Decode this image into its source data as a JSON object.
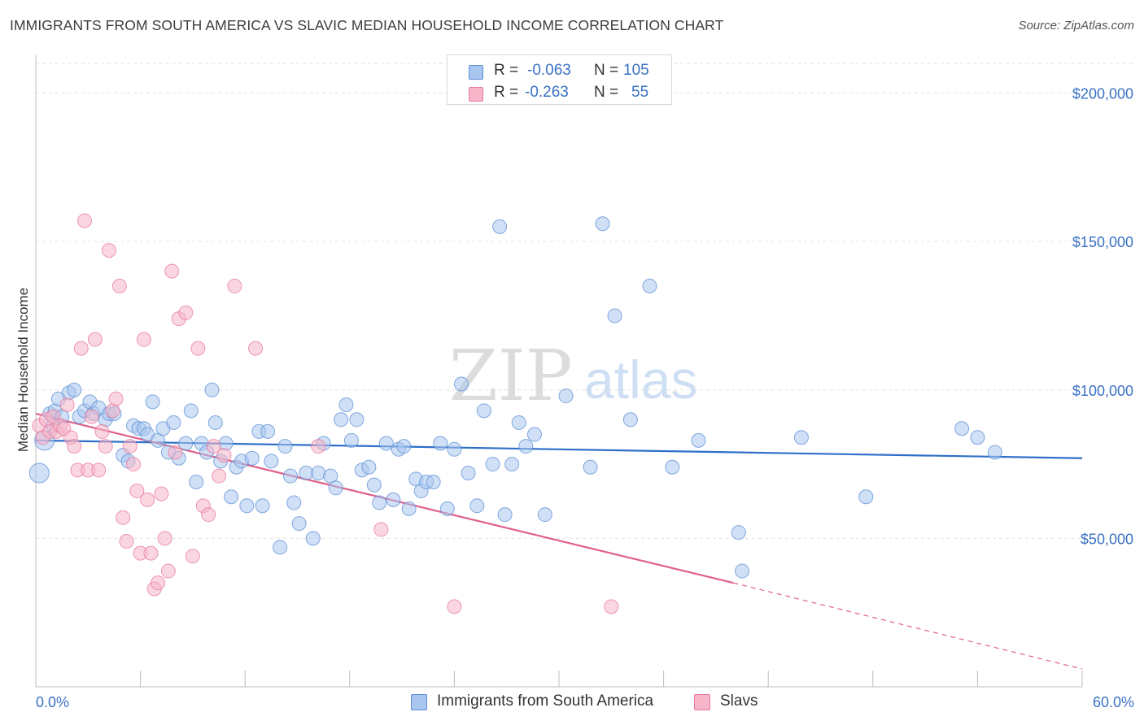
{
  "title": "IMMIGRANTS FROM SOUTH AMERICA VS SLAVIC MEDIAN HOUSEHOLD INCOME CORRELATION CHART",
  "source": "Source: ZipAtlas.com",
  "watermark": {
    "zip": "ZIP",
    "atlas": "atlas"
  },
  "legend_top": [
    {
      "r_label": "R =",
      "r_value": "-0.063",
      "n_label": "N =",
      "n_value": "105",
      "color": "#a9c6ee"
    },
    {
      "r_label": "R =",
      "r_value": "-0.263",
      "n_label": "N =",
      "n_value": "55",
      "color": "#f6b5c8"
    }
  ],
  "legend_bottom": [
    {
      "label": "Immigrants from South America",
      "color": "#a9c6ee"
    },
    {
      "label": "Slavs",
      "color": "#f6b5c8"
    }
  ],
  "chart_data": {
    "type": "scatter",
    "title": "IMMIGRANTS FROM SOUTH AMERICA VS SLAVIC MEDIAN HOUSEHOLD INCOME CORRELATION CHART",
    "xlabel": "",
    "ylabel": "Median Household Income",
    "xlim": [
      0,
      60
    ],
    "ylim": [
      0,
      210000
    ],
    "x_tick_labels": [
      "0.0%",
      "60.0%"
    ],
    "y_ticks": [
      50000,
      100000,
      150000,
      200000
    ],
    "y_tick_labels": [
      "$50,000",
      "$100,000",
      "$150,000",
      "$200,000"
    ],
    "grid": true,
    "legend_position": "top-center",
    "series": [
      {
        "name": "Immigrants from South America",
        "color": "#5b8fd6",
        "fill": "#a9c6ee",
        "trend": {
          "x": [
            0,
            60
          ],
          "y": [
            83000,
            77000
          ]
        },
        "points": [
          [
            0.2,
            72000
          ],
          [
            0.5,
            83000
          ],
          [
            0.8,
            92000
          ],
          [
            1.0,
            88000
          ],
          [
            1.1,
            93000
          ],
          [
            1.3,
            97000
          ],
          [
            1.5,
            91000
          ],
          [
            1.9,
            99000
          ],
          [
            2.2,
            100000
          ],
          [
            2.5,
            91000
          ],
          [
            2.8,
            93000
          ],
          [
            3.1,
            96000
          ],
          [
            3.3,
            92000
          ],
          [
            3.6,
            94000
          ],
          [
            4.0,
            90000
          ],
          [
            4.2,
            92000
          ],
          [
            4.5,
            92000
          ],
          [
            5.0,
            78000
          ],
          [
            5.3,
            76000
          ],
          [
            5.6,
            88000
          ],
          [
            5.9,
            87000
          ],
          [
            6.2,
            87000
          ],
          [
            6.4,
            85000
          ],
          [
            6.7,
            96000
          ],
          [
            7.0,
            83000
          ],
          [
            7.3,
            87000
          ],
          [
            7.6,
            79000
          ],
          [
            7.9,
            89000
          ],
          [
            8.2,
            77000
          ],
          [
            8.6,
            82000
          ],
          [
            8.9,
            93000
          ],
          [
            9.2,
            69000
          ],
          [
            9.5,
            82000
          ],
          [
            9.8,
            79000
          ],
          [
            10.1,
            100000
          ],
          [
            10.3,
            89000
          ],
          [
            10.6,
            76000
          ],
          [
            10.9,
            82000
          ],
          [
            11.2,
            64000
          ],
          [
            11.5,
            74000
          ],
          [
            11.8,
            76000
          ],
          [
            12.1,
            61000
          ],
          [
            12.4,
            77000
          ],
          [
            12.8,
            86000
          ],
          [
            13.0,
            61000
          ],
          [
            13.3,
            86000
          ],
          [
            13.5,
            76000
          ],
          [
            14.0,
            47000
          ],
          [
            14.3,
            81000
          ],
          [
            14.6,
            71000
          ],
          [
            14.8,
            62000
          ],
          [
            15.1,
            55000
          ],
          [
            15.5,
            72000
          ],
          [
            15.9,
            50000
          ],
          [
            16.2,
            72000
          ],
          [
            16.5,
            82000
          ],
          [
            16.9,
            71000
          ],
          [
            17.2,
            67000
          ],
          [
            17.5,
            90000
          ],
          [
            17.8,
            95000
          ],
          [
            18.1,
            83000
          ],
          [
            18.4,
            90000
          ],
          [
            18.7,
            73000
          ],
          [
            19.1,
            74000
          ],
          [
            19.4,
            68000
          ],
          [
            19.7,
            62000
          ],
          [
            20.1,
            82000
          ],
          [
            20.5,
            63000
          ],
          [
            20.8,
            80000
          ],
          [
            21.1,
            81000
          ],
          [
            21.4,
            60000
          ],
          [
            21.8,
            70000
          ],
          [
            22.1,
            66000
          ],
          [
            22.4,
            69000
          ],
          [
            22.8,
            69000
          ],
          [
            23.2,
            82000
          ],
          [
            23.6,
            60000
          ],
          [
            24.0,
            80000
          ],
          [
            24.4,
            102000
          ],
          [
            24.8,
            72000
          ],
          [
            25.3,
            61000
          ],
          [
            25.7,
            93000
          ],
          [
            26.2,
            75000
          ],
          [
            26.6,
            155000
          ],
          [
            26.9,
            58000
          ],
          [
            27.3,
            75000
          ],
          [
            27.7,
            89000
          ],
          [
            28.1,
            81000
          ],
          [
            28.6,
            85000
          ],
          [
            29.2,
            58000
          ],
          [
            30.4,
            98000
          ],
          [
            31.8,
            74000
          ],
          [
            32.5,
            156000
          ],
          [
            33.2,
            125000
          ],
          [
            34.1,
            90000
          ],
          [
            35.2,
            135000
          ],
          [
            36.5,
            74000
          ],
          [
            38.0,
            83000
          ],
          [
            40.3,
            52000
          ],
          [
            40.5,
            39000
          ],
          [
            43.9,
            84000
          ],
          [
            47.6,
            64000
          ],
          [
            53.1,
            87000
          ],
          [
            54.0,
            84000
          ],
          [
            55.0,
            79000
          ]
        ]
      },
      {
        "name": "Slavs",
        "color": "#e8789e",
        "fill": "#f6b5c8",
        "trend": {
          "x": [
            0,
            40
          ],
          "y": [
            92000,
            35000
          ]
        },
        "trend_extension": {
          "x": [
            40,
            60
          ],
          "y": [
            35000,
            6000
          ]
        },
        "points": [
          [
            0.2,
            88000
          ],
          [
            0.4,
            84000
          ],
          [
            0.6,
            90000
          ],
          [
            0.8,
            86000
          ],
          [
            1.0,
            91000
          ],
          [
            1.2,
            86000
          ],
          [
            1.4,
            88000
          ],
          [
            1.6,
            87000
          ],
          [
            1.8,
            95000
          ],
          [
            2.0,
            84000
          ],
          [
            2.2,
            81000
          ],
          [
            2.4,
            73000
          ],
          [
            2.6,
            114000
          ],
          [
            2.8,
            157000
          ],
          [
            3.0,
            73000
          ],
          [
            3.2,
            91000
          ],
          [
            3.4,
            117000
          ],
          [
            3.6,
            73000
          ],
          [
            3.8,
            86000
          ],
          [
            4.0,
            81000
          ],
          [
            4.2,
            147000
          ],
          [
            4.4,
            93000
          ],
          [
            4.6,
            97000
          ],
          [
            4.8,
            135000
          ],
          [
            5.0,
            57000
          ],
          [
            5.2,
            49000
          ],
          [
            5.4,
            81000
          ],
          [
            5.6,
            75000
          ],
          [
            5.8,
            66000
          ],
          [
            6.0,
            45000
          ],
          [
            6.2,
            117000
          ],
          [
            6.4,
            63000
          ],
          [
            6.6,
            45000
          ],
          [
            6.8,
            33000
          ],
          [
            7.0,
            35000
          ],
          [
            7.2,
            65000
          ],
          [
            7.4,
            50000
          ],
          [
            7.6,
            39000
          ],
          [
            7.8,
            140000
          ],
          [
            8.0,
            79000
          ],
          [
            8.2,
            124000
          ],
          [
            8.6,
            126000
          ],
          [
            9.0,
            44000
          ],
          [
            9.3,
            114000
          ],
          [
            9.6,
            61000
          ],
          [
            9.9,
            58000
          ],
          [
            10.2,
            81000
          ],
          [
            10.5,
            71000
          ],
          [
            10.8,
            78000
          ],
          [
            11.4,
            135000
          ],
          [
            12.6,
            114000
          ],
          [
            16.2,
            81000
          ],
          [
            19.8,
            53000
          ],
          [
            24.0,
            27000
          ],
          [
            33.0,
            27000
          ]
        ]
      }
    ]
  }
}
